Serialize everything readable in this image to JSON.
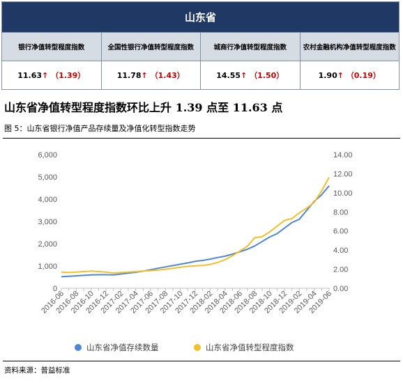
{
  "table": {
    "region": "山东省",
    "headers": [
      "银行净值转型程度指数",
      "全国性银行净值转型程度指数",
      "城商行净值转型程度指数",
      "农村金融机构净值转型程度指数"
    ],
    "values": [
      "11.63",
      "11.78",
      "14.55",
      "1.90"
    ],
    "arrow": "↑",
    "changes": [
      "（1.39）",
      "（1.43）",
      "（1.50）",
      "（0.19）"
    ]
  },
  "section_title": "山东省净值转型程度指数环比上升 1.39 点至 11.63 点",
  "figure_caption": "图 5：山东省银行净值产品存续量及净值化转型指数走势",
  "source": "资料来源：普益标准",
  "colors": {
    "header_bg": "#1f3864",
    "subheader_bg": "#d6dce4",
    "up": "#c00000",
    "series1": "#4e86d4",
    "series2": "#f5bf2a"
  },
  "chart_data": {
    "type": "line",
    "x": [
      "2016-06",
      "2016-07",
      "2016-08",
      "2016-09",
      "2016-10",
      "2016-11",
      "2016-12",
      "2017-01",
      "2017-02",
      "2017-03",
      "2017-04",
      "2017-05",
      "2017-06",
      "2017-07",
      "2017-08",
      "2017-09",
      "2017-10",
      "2017-11",
      "2017-12",
      "2018-01",
      "2018-02",
      "2018-03",
      "2018-04",
      "2018-05",
      "2018-06",
      "2018-07",
      "2018-08",
      "2018-09",
      "2018-10",
      "2018-11",
      "2018-12",
      "2019-01",
      "2019-02",
      "2019-03",
      "2019-04",
      "2019-05",
      "2019-06"
    ],
    "x_tick_labels": [
      "2016-06",
      "2016-08",
      "2016-10",
      "2016-12",
      "2017-02",
      "2017-04",
      "2017-06",
      "2017-08",
      "2017-10",
      "2017-12",
      "2018-02",
      "2018-04",
      "2018-06",
      "2018-08",
      "2018-10",
      "2018-12",
      "2019-02",
      "2019-04",
      "2019-06"
    ],
    "series": [
      {
        "name": "山东省净值存续数量",
        "axis": "left",
        "values": [
          520,
          540,
          560,
          580,
          600,
          610,
          610,
          600,
          640,
          680,
          720,
          770,
          830,
          900,
          960,
          1020,
          1080,
          1140,
          1210,
          1250,
          1310,
          1380,
          1440,
          1530,
          1640,
          1750,
          1900,
          2100,
          2300,
          2450,
          2700,
          2950,
          3100,
          3500,
          3900,
          4200,
          4600
        ]
      },
      {
        "name": "山东省净值转型程度指数",
        "axis": "right",
        "values": [
          1.7,
          1.65,
          1.7,
          1.75,
          1.8,
          1.75,
          1.7,
          1.6,
          1.65,
          1.7,
          1.75,
          1.8,
          1.85,
          1.9,
          2.0,
          2.1,
          2.2,
          2.3,
          2.35,
          2.4,
          2.5,
          2.7,
          3.0,
          3.4,
          3.9,
          4.4,
          5.3,
          5.4,
          5.9,
          6.5,
          7.1,
          7.3,
          7.9,
          8.4,
          9.0,
          10.2,
          11.63
        ]
      }
    ],
    "ylim_left": [
      0,
      6000
    ],
    "yticks_left": [
      "0",
      "1,000",
      "2,000",
      "3,000",
      "4,000",
      "5,000",
      "6,000"
    ],
    "ylim_right": [
      0,
      14
    ],
    "yticks_right": [
      "0.00",
      "2.00",
      "4.00",
      "6.00",
      "8.00",
      "10.00",
      "12.00",
      "14.00"
    ],
    "grid": false,
    "legend_position": "bottom"
  }
}
